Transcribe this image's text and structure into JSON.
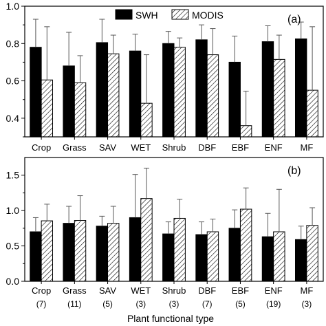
{
  "chart_data": [
    {
      "type": "bar",
      "panel_label": "(a)",
      "categories": [
        "Crop",
        "Grass",
        "SAV",
        "WET",
        "Shrub",
        "DBF",
        "EBF",
        "ENF",
        "MF"
      ],
      "series": [
        {
          "name": "SWH",
          "values": [
            0.78,
            0.68,
            0.805,
            0.76,
            0.8,
            0.82,
            0.7,
            0.81,
            0.825
          ],
          "errors": [
            0.15,
            0.18,
            0.125,
            0.09,
            0.065,
            0.08,
            0.14,
            0.085,
            0.09
          ]
        },
        {
          "name": "MODIS",
          "values": [
            0.605,
            0.59,
            0.745,
            0.48,
            0.78,
            0.74,
            0.36,
            0.715,
            0.55
          ],
          "errors": [
            0.285,
            0.145,
            0.1,
            0.26,
            0.05,
            0.14,
            0.185,
            0.13,
            0.34
          ]
        }
      ],
      "ylim": [
        0.3,
        1.0
      ],
      "yticks": [
        "0.4",
        "0.6",
        "0.8",
        "1.0"
      ],
      "xlabel": "",
      "ylabel": "",
      "legend": "top-center"
    },
    {
      "type": "bar",
      "panel_label": "(b)",
      "categories": [
        "Crop",
        "Grass",
        "SAV",
        "WET",
        "Shrub",
        "DBF",
        "EBF",
        "ENF",
        "MF"
      ],
      "category_counts": [
        "(7)",
        "(11)",
        "(5)",
        "(3)",
        "(3)",
        "(7)",
        "(5)",
        "(19)",
        "(3)"
      ],
      "series": [
        {
          "name": "SWH",
          "values": [
            0.7,
            0.82,
            0.78,
            0.9,
            0.67,
            0.66,
            0.75,
            0.63,
            0.59
          ],
          "errors": [
            0.2,
            0.24,
            0.14,
            0.61,
            0.17,
            0.18,
            0.26,
            0.33,
            0.19
          ]
        },
        {
          "name": "MODIS",
          "values": [
            0.855,
            0.86,
            0.82,
            1.17,
            0.89,
            0.7,
            1.02,
            0.7,
            0.79
          ],
          "errors": [
            0.235,
            0.35,
            0.24,
            0.43,
            0.27,
            0.18,
            0.3,
            0.6,
            0.25
          ]
        }
      ],
      "ylim": [
        0.0,
        1.75
      ],
      "yticks": [
        "0.0",
        "0.5",
        "1.0",
        "1.5"
      ],
      "xlabel": "Plant functional type",
      "ylabel": "",
      "legend": "none"
    }
  ]
}
